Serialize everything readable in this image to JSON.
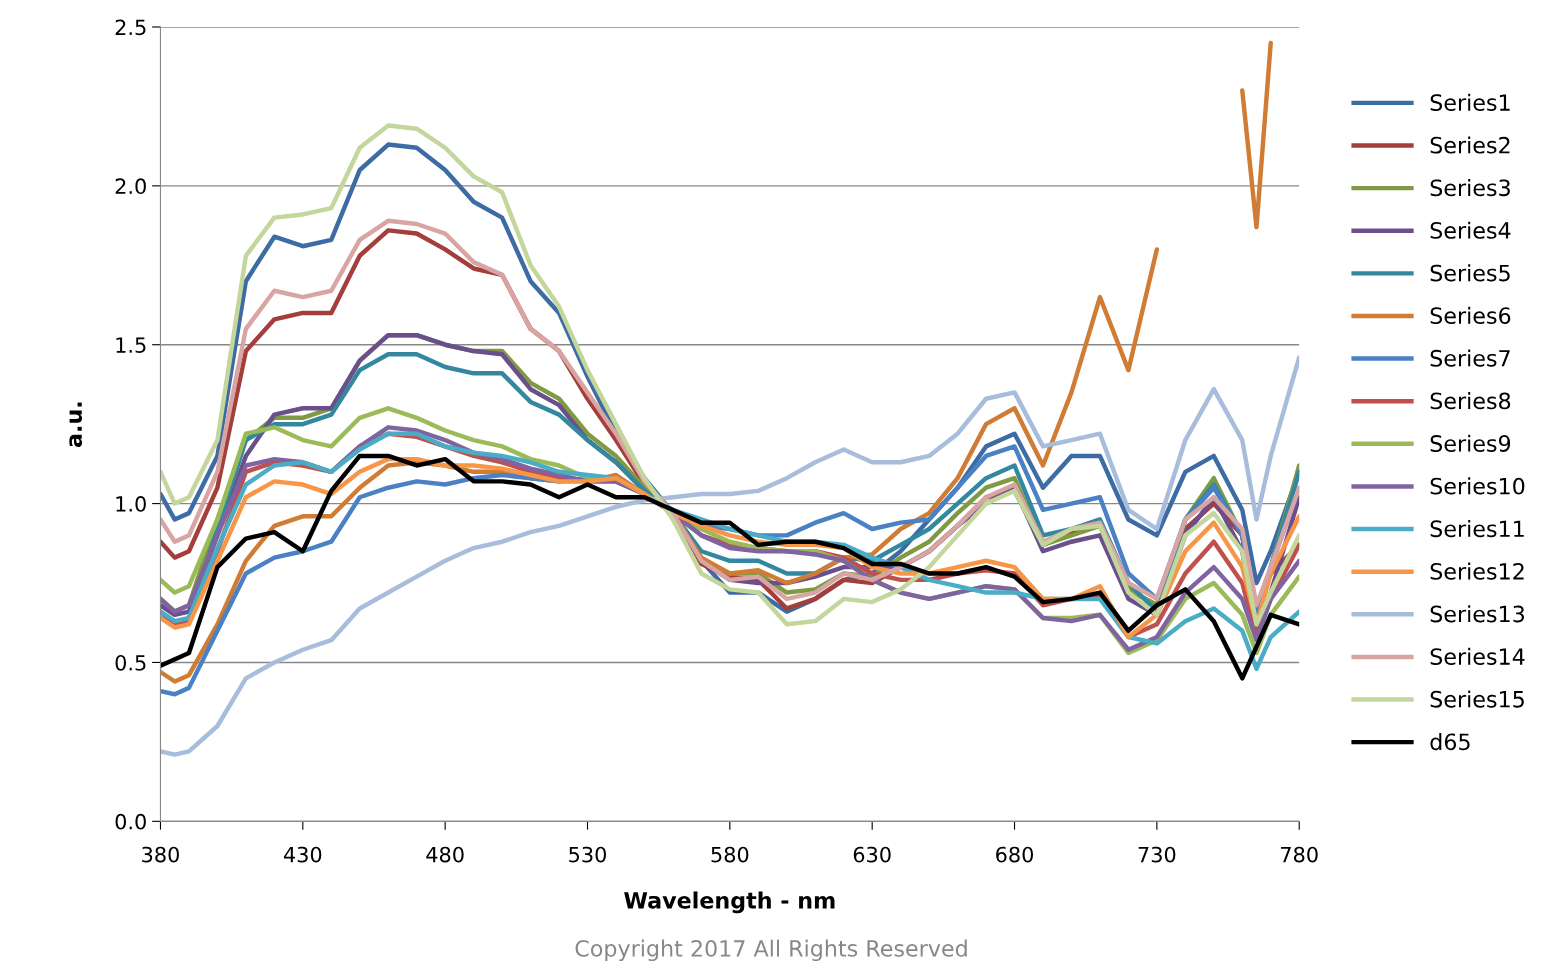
{
  "chart_data": {
    "type": "line",
    "xlabel": "Wavelength - nm",
    "ylabel": "a.u.",
    "x": [
      380,
      385,
      390,
      400,
      410,
      420,
      430,
      440,
      450,
      460,
      470,
      480,
      490,
      500,
      510,
      520,
      530,
      540,
      550,
      560,
      570,
      580,
      590,
      600,
      610,
      620,
      630,
      640,
      650,
      660,
      670,
      680,
      690,
      700,
      710,
      720,
      730,
      740,
      750,
      760,
      765,
      770,
      780
    ],
    "xlim": [
      380,
      780
    ],
    "xticks": [
      380,
      430,
      480,
      530,
      580,
      630,
      680,
      730,
      780
    ],
    "ylim": [
      0,
      2.5
    ],
    "yticks": [
      {
        "value": 0,
        "label": "0.0"
      },
      {
        "value": 0.5,
        "label": "0.5"
      },
      {
        "value": 1.0,
        "label": "1.0"
      },
      {
        "value": 1.5,
        "label": "1.5"
      },
      {
        "value": 2.0,
        "label": "2.0"
      },
      {
        "value": 2.5,
        "label": "2.5"
      }
    ],
    "grid": "y",
    "legend": "right",
    "marker": "none",
    "line_style": "solid",
    "annotations": [
      "Copyright 2017 All Rights Reserved"
    ],
    "series": [
      {
        "name": "Series1",
        "color": "#3d6ca4",
        "values": [
          1.03,
          0.95,
          0.97,
          1.15,
          1.7,
          1.84,
          1.81,
          1.83,
          2.05,
          2.13,
          2.12,
          2.05,
          1.95,
          1.9,
          1.7,
          1.6,
          1.4,
          1.22,
          1.08,
          0.97,
          0.82,
          0.72,
          0.72,
          0.66,
          0.7,
          0.76,
          0.78,
          0.85,
          0.95,
          1.05,
          1.18,
          1.22,
          1.05,
          1.15,
          1.15,
          0.95,
          0.9,
          1.1,
          1.15,
          0.98,
          0.75,
          0.85,
          1.1
        ]
      },
      {
        "name": "Series2",
        "color": "#a33e3b",
        "values": [
          0.88,
          0.83,
          0.85,
          1.05,
          1.48,
          1.58,
          1.6,
          1.6,
          1.78,
          1.86,
          1.85,
          1.8,
          1.74,
          1.72,
          1.55,
          1.48,
          1.33,
          1.2,
          1.06,
          0.97,
          0.81,
          0.77,
          0.76,
          0.67,
          0.7,
          0.76,
          0.75,
          0.8,
          0.85,
          0.93,
          1.02,
          1.04,
          0.87,
          0.91,
          0.93,
          0.73,
          0.68,
          0.92,
          1.0,
          0.9,
          0.66,
          0.78,
          0.87
        ]
      },
      {
        "name": "Series3",
        "color": "#7f9a42",
        "values": [
          0.7,
          0.66,
          0.68,
          0.95,
          1.2,
          1.27,
          1.27,
          1.3,
          1.45,
          1.53,
          1.53,
          1.5,
          1.48,
          1.48,
          1.38,
          1.33,
          1.22,
          1.15,
          1.05,
          0.97,
          0.82,
          0.78,
          0.78,
          0.72,
          0.73,
          0.78,
          0.77,
          0.83,
          0.88,
          0.97,
          1.05,
          1.08,
          0.87,
          0.9,
          0.93,
          0.73,
          0.68,
          0.95,
          1.08,
          0.9,
          0.62,
          0.8,
          1.12
        ]
      },
      {
        "name": "Series4",
        "color": "#6b4f8c",
        "values": [
          0.68,
          0.65,
          0.66,
          0.9,
          1.15,
          1.28,
          1.3,
          1.3,
          1.45,
          1.53,
          1.53,
          1.5,
          1.48,
          1.47,
          1.36,
          1.31,
          1.2,
          1.13,
          1.04,
          0.97,
          0.82,
          0.76,
          0.75,
          0.75,
          0.77,
          0.8,
          0.8,
          0.8,
          0.85,
          0.93,
          1.0,
          1.05,
          0.85,
          0.88,
          0.9,
          0.7,
          0.65,
          0.9,
          1.02,
          0.85,
          0.58,
          0.72,
          1.02
        ]
      },
      {
        "name": "Series5",
        "color": "#33889f",
        "values": [
          0.66,
          0.62,
          0.64,
          0.92,
          1.2,
          1.25,
          1.25,
          1.28,
          1.42,
          1.47,
          1.47,
          1.43,
          1.41,
          1.41,
          1.32,
          1.28,
          1.2,
          1.13,
          1.04,
          0.97,
          0.85,
          0.82,
          0.82,
          0.78,
          0.78,
          0.83,
          0.82,
          0.87,
          0.92,
          1.0,
          1.08,
          1.12,
          0.9,
          0.92,
          0.95,
          0.75,
          0.66,
          0.95,
          1.06,
          0.9,
          0.6,
          0.8,
          1.1
        ]
      },
      {
        "name": "Series6",
        "color": "#d07c34",
        "values": [
          0.47,
          0.44,
          0.46,
          0.62,
          0.82,
          0.93,
          0.96,
          0.96,
          1.05,
          1.12,
          1.13,
          1.12,
          1.1,
          1.1,
          1.08,
          1.07,
          1.07,
          1.09,
          1.03,
          0.97,
          0.83,
          0.78,
          0.79,
          0.75,
          0.78,
          0.83,
          0.84,
          0.92,
          0.97,
          1.08,
          1.25,
          1.3,
          1.12,
          1.35,
          1.65,
          1.42,
          1.8,
          null,
          null,
          2.3,
          1.87,
          2.45,
          null
        ]
      },
      {
        "name": "Series7",
        "color": "#4a80c4",
        "values": [
          0.41,
          0.4,
          0.42,
          0.6,
          0.78,
          0.83,
          0.85,
          0.88,
          1.02,
          1.05,
          1.07,
          1.06,
          1.08,
          1.09,
          1.08,
          1.07,
          1.08,
          1.07,
          1.03,
          0.98,
          0.93,
          0.92,
          0.9,
          0.9,
          0.94,
          0.97,
          0.92,
          0.94,
          0.95,
          1.05,
          1.15,
          1.18,
          0.98,
          1.0,
          1.02,
          0.78,
          0.7,
          0.95,
          1.05,
          0.9,
          0.65,
          0.8,
          1.05
        ]
      },
      {
        "name": "Series8",
        "color": "#c0504d",
        "values": [
          0.64,
          0.62,
          0.63,
          0.85,
          1.1,
          1.13,
          1.12,
          1.1,
          1.18,
          1.22,
          1.21,
          1.18,
          1.15,
          1.13,
          1.1,
          1.08,
          1.07,
          1.07,
          1.03,
          0.97,
          0.9,
          0.87,
          0.86,
          0.85,
          0.85,
          0.83,
          0.78,
          0.76,
          0.76,
          0.78,
          0.79,
          0.78,
          0.68,
          0.7,
          0.71,
          0.58,
          0.62,
          0.78,
          0.88,
          0.75,
          0.58,
          0.7,
          0.87
        ]
      },
      {
        "name": "Series9",
        "color": "#9bbb59",
        "values": [
          0.76,
          0.72,
          0.74,
          0.95,
          1.22,
          1.24,
          1.2,
          1.18,
          1.27,
          1.3,
          1.27,
          1.23,
          1.2,
          1.18,
          1.14,
          1.12,
          1.08,
          1.08,
          1.03,
          0.97,
          0.92,
          0.88,
          0.86,
          0.85,
          0.85,
          0.82,
          0.76,
          0.72,
          0.7,
          0.72,
          0.74,
          0.73,
          0.64,
          0.64,
          0.65,
          0.53,
          0.57,
          0.7,
          0.75,
          0.65,
          0.53,
          0.65,
          0.77
        ]
      },
      {
        "name": "Series10",
        "color": "#8064a2",
        "values": [
          0.7,
          0.66,
          0.68,
          0.9,
          1.12,
          1.14,
          1.13,
          1.1,
          1.18,
          1.24,
          1.23,
          1.2,
          1.16,
          1.14,
          1.11,
          1.09,
          1.07,
          1.07,
          1.03,
          0.97,
          0.9,
          0.86,
          0.85,
          0.85,
          0.84,
          0.82,
          0.76,
          0.72,
          0.7,
          0.72,
          0.74,
          0.73,
          0.64,
          0.63,
          0.65,
          0.54,
          0.58,
          0.72,
          0.8,
          0.7,
          0.57,
          0.7,
          0.82
        ]
      },
      {
        "name": "Series11",
        "color": "#4bacc6",
        "values": [
          0.66,
          0.63,
          0.64,
          0.86,
          1.06,
          1.12,
          1.13,
          1.1,
          1.17,
          1.22,
          1.22,
          1.18,
          1.16,
          1.15,
          1.13,
          1.1,
          1.09,
          1.08,
          1.03,
          0.98,
          0.95,
          0.92,
          0.9,
          0.88,
          0.88,
          0.87,
          0.83,
          0.8,
          0.76,
          0.74,
          0.72,
          0.72,
          0.7,
          0.7,
          0.7,
          0.58,
          0.56,
          0.63,
          0.67,
          0.6,
          0.48,
          0.58,
          0.66
        ]
      },
      {
        "name": "Series12",
        "color": "#f79646",
        "values": [
          0.64,
          0.61,
          0.62,
          0.82,
          1.02,
          1.07,
          1.06,
          1.03,
          1.1,
          1.14,
          1.14,
          1.12,
          1.12,
          1.11,
          1.09,
          1.07,
          1.07,
          1.08,
          1.03,
          0.97,
          0.93,
          0.9,
          0.88,
          0.87,
          0.87,
          0.86,
          0.8,
          0.78,
          0.78,
          0.8,
          0.82,
          0.8,
          0.7,
          0.7,
          0.74,
          0.58,
          0.65,
          0.85,
          0.94,
          0.8,
          0.62,
          0.78,
          0.96
        ]
      },
      {
        "name": "Series13",
        "color": "#a8bcdc",
        "values": [
          0.22,
          0.21,
          0.22,
          0.3,
          0.45,
          0.5,
          0.54,
          0.57,
          0.67,
          0.72,
          0.77,
          0.82,
          0.86,
          0.88,
          0.91,
          0.93,
          0.96,
          0.99,
          1.01,
          1.02,
          1.03,
          1.03,
          1.04,
          1.08,
          1.13,
          1.17,
          1.13,
          1.13,
          1.15,
          1.22,
          1.33,
          1.35,
          1.18,
          1.2,
          1.22,
          0.98,
          0.92,
          1.2,
          1.36,
          1.2,
          0.95,
          1.15,
          1.46
        ]
      },
      {
        "name": "Series14",
        "color": "#d9a5a3",
        "values": [
          0.95,
          0.88,
          0.9,
          1.1,
          1.55,
          1.67,
          1.65,
          1.67,
          1.83,
          1.89,
          1.88,
          1.85,
          1.76,
          1.72,
          1.55,
          1.48,
          1.35,
          1.22,
          1.07,
          0.97,
          0.82,
          0.76,
          0.77,
          0.7,
          0.72,
          0.78,
          0.76,
          0.8,
          0.85,
          0.93,
          1.02,
          1.06,
          0.88,
          0.92,
          0.94,
          0.75,
          0.7,
          0.95,
          1.02,
          0.92,
          0.68,
          0.8,
          1.05
        ]
      },
      {
        "name": "Series15",
        "color": "#c3d69b",
        "values": [
          1.1,
          1.0,
          1.02,
          1.2,
          1.78,
          1.9,
          1.91,
          1.93,
          2.12,
          2.19,
          2.18,
          2.12,
          2.03,
          1.98,
          1.75,
          1.62,
          1.42,
          1.25,
          1.08,
          0.95,
          0.78,
          0.73,
          0.72,
          0.62,
          0.63,
          0.7,
          0.69,
          0.73,
          0.8,
          0.9,
          1.0,
          1.04,
          0.87,
          0.92,
          0.93,
          0.72,
          0.65,
          0.9,
          0.97,
          0.85,
          0.62,
          0.72,
          0.9
        ]
      },
      {
        "name": "d65",
        "color": "#000000",
        "x": [
          380,
          390,
          400,
          410,
          420,
          430,
          440,
          450,
          460,
          470,
          480,
          490,
          500,
          510,
          520,
          530,
          540,
          550,
          560,
          570,
          580,
          590,
          600,
          610,
          620,
          630,
          640,
          650,
          660,
          670,
          680,
          690,
          700,
          710,
          720,
          730,
          740,
          750,
          760,
          770,
          780
        ],
        "values": [
          0.49,
          0.53,
          0.8,
          0.89,
          0.91,
          0.85,
          1.04,
          1.15,
          1.15,
          1.12,
          1.14,
          1.07,
          1.07,
          1.06,
          1.02,
          1.06,
          1.02,
          1.02,
          0.98,
          0.94,
          0.94,
          0.87,
          0.88,
          0.88,
          0.86,
          0.81,
          0.81,
          0.78,
          0.78,
          0.8,
          0.77,
          0.69,
          0.7,
          0.72,
          0.6,
          0.68,
          0.73,
          0.63,
          0.45,
          0.65,
          0.62
        ]
      }
    ]
  }
}
